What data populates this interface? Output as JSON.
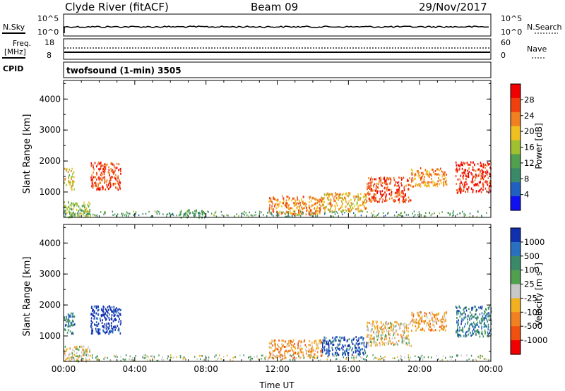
{
  "header": {
    "station": "Clyde River (fitACF)",
    "beam": "Beam 09",
    "date": "29/Nov/2017"
  },
  "nsky_panel": {
    "left_label": "N.Sky",
    "left_ticks": [
      "10^5",
      "10^0"
    ],
    "right_ticks": [
      "10^5",
      "10^0"
    ],
    "right_label": "N.Search"
  },
  "freq_panel": {
    "left_label_1": "Freq.",
    "left_label_2": "[MHz]",
    "left_ticks": [
      "18",
      "8"
    ],
    "right_ticks": [
      "60",
      "0"
    ],
    "right_label": "Nave",
    "cpid_label": "CPID",
    "cpid_text": "twofsound (1-min) 3505"
  },
  "colors": {
    "power_scale": [
      "#1010f0",
      "#2060c0",
      "#3a8a6a",
      "#50a050",
      "#a0c030",
      "#f0c020",
      "#f08020",
      "#f04010",
      "#f00000"
    ],
    "velocity_scale": [
      "#1030b0",
      "#2a70c0",
      "#3a8a6a",
      "#50a050",
      "#c8c8c8",
      "#f0b020",
      "#f08020",
      "#f05010",
      "#f00000"
    ]
  },
  "chart_data": [
    {
      "type": "heatmap",
      "title": "",
      "ylabel": "Slant Range [km]",
      "xlabel": "",
      "ylim": [
        180,
        4600
      ],
      "y_ticks": [
        "1000",
        "2000",
        "3000",
        "4000"
      ],
      "x_ticks": [
        "00:00",
        "04:00",
        "08:00",
        "12:00",
        "16:00",
        "20:00",
        "00:00"
      ],
      "colorbar": {
        "label": "Power [dB]",
        "ticks": [
          "4",
          "8",
          "12",
          "16",
          "20",
          "24",
          "28"
        ],
        "range": [
          0,
          30
        ]
      },
      "regions": [
        {
          "t": [
            0.0,
            0.6
          ],
          "r": [
            1100,
            1800
          ],
          "value": 18
        },
        {
          "t": [
            0.0,
            1.5
          ],
          "r": [
            200,
            700
          ],
          "value": 14
        },
        {
          "t": [
            1.5,
            3.2
          ],
          "r": [
            1100,
            2000
          ],
          "value": 26
        },
        {
          "t": [
            6.5,
            8.0
          ],
          "r": [
            200,
            450
          ],
          "value": 10
        },
        {
          "t": [
            11.5,
            14.5
          ],
          "r": [
            300,
            900
          ],
          "value": 22
        },
        {
          "t": [
            14.5,
            17.0
          ],
          "r": [
            400,
            1000
          ],
          "value": 20
        },
        {
          "t": [
            17.0,
            19.5
          ],
          "r": [
            700,
            1500
          ],
          "value": 26
        },
        {
          "t": [
            19.5,
            21.5
          ],
          "r": [
            1200,
            1800
          ],
          "value": 22
        },
        {
          "t": [
            22.0,
            24.0
          ],
          "r": [
            1000,
            2000
          ],
          "value": 28
        }
      ]
    },
    {
      "type": "heatmap",
      "title": "",
      "ylabel": "Slant Range [km]",
      "xlabel": "Time UT",
      "ylim": [
        180,
        4600
      ],
      "y_ticks": [
        "1000",
        "2000",
        "3000",
        "4000"
      ],
      "x_ticks": [
        "00:00",
        "04:00",
        "08:00",
        "12:00",
        "16:00",
        "20:00",
        "00:00"
      ],
      "colorbar": {
        "label": "Velocity [m s",
        "label_sup": "-1",
        "label_end": "]",
        "ticks": [
          "1000",
          "500",
          "100",
          "25",
          "-25",
          "-100",
          "-500",
          "-1000"
        ]
      },
      "regions": [
        {
          "t": [
            0.0,
            0.6
          ],
          "r": [
            1100,
            1800
          ],
          "value": 100
        },
        {
          "t": [
            0.0,
            1.5
          ],
          "r": [
            200,
            700
          ],
          "value": -100
        },
        {
          "t": [
            1.5,
            3.2
          ],
          "r": [
            1100,
            2000
          ],
          "value": 1000
        },
        {
          "t": [
            11.5,
            14.5
          ],
          "r": [
            300,
            900
          ],
          "value": -500
        },
        {
          "t": [
            14.5,
            17.0
          ],
          "r": [
            400,
            1000
          ],
          "value": 500
        },
        {
          "t": [
            17.0,
            19.5
          ],
          "r": [
            700,
            1500
          ],
          "value": -100
        },
        {
          "t": [
            19.5,
            21.5
          ],
          "r": [
            1200,
            1800
          ],
          "value": -500
        },
        {
          "t": [
            22.0,
            24.0
          ],
          "r": [
            1000,
            2000
          ],
          "value": 100
        }
      ]
    }
  ]
}
